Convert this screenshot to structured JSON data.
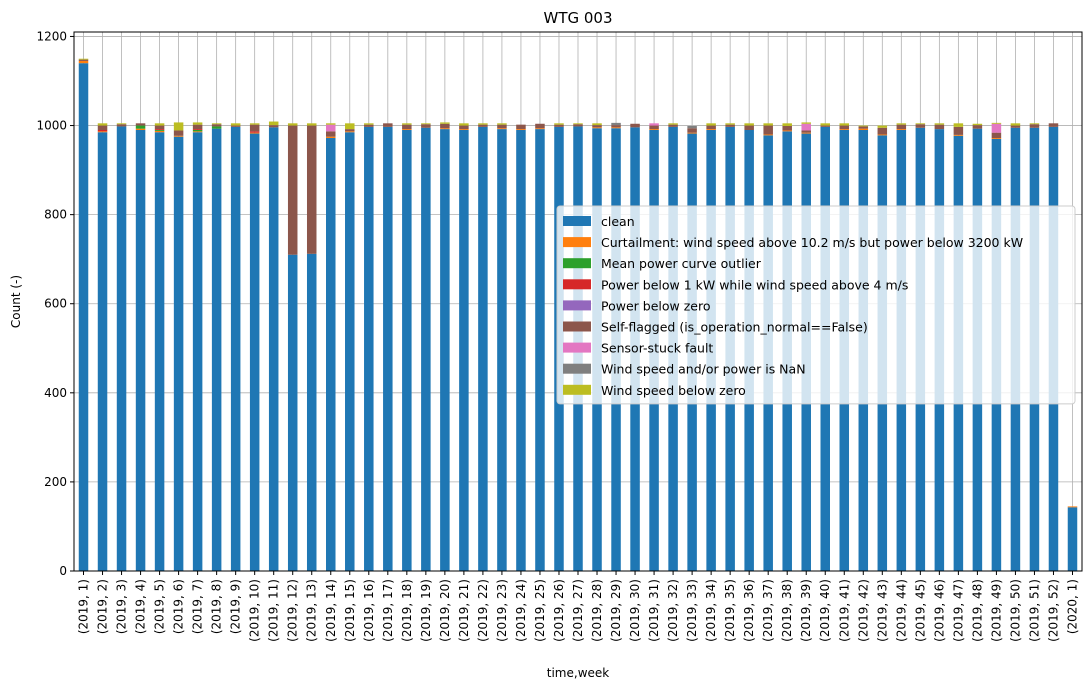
{
  "chart_data": {
    "type": "bar",
    "stacked": true,
    "title": "WTG 003",
    "xlabel": "time,week",
    "ylabel": "Count (-)",
    "ylim": [
      0,
      1210
    ],
    "yticks": [
      0,
      200,
      400,
      600,
      800,
      1000,
      1200
    ],
    "grid": true,
    "legend_position": "center-right",
    "categories": [
      "(2019, 1)",
      "(2019, 2)",
      "(2019, 3)",
      "(2019, 4)",
      "(2019, 5)",
      "(2019, 6)",
      "(2019, 7)",
      "(2019, 8)",
      "(2019, 9)",
      "(2019, 10)",
      "(2019, 11)",
      "(2019, 12)",
      "(2019, 13)",
      "(2019, 14)",
      "(2019, 15)",
      "(2019, 16)",
      "(2019, 17)",
      "(2019, 18)",
      "(2019, 19)",
      "(2019, 20)",
      "(2019, 21)",
      "(2019, 22)",
      "(2019, 23)",
      "(2019, 24)",
      "(2019, 25)",
      "(2019, 26)",
      "(2019, 27)",
      "(2019, 28)",
      "(2019, 29)",
      "(2019, 30)",
      "(2019, 31)",
      "(2019, 32)",
      "(2019, 33)",
      "(2019, 34)",
      "(2019, 35)",
      "(2019, 36)",
      "(2019, 37)",
      "(2019, 38)",
      "(2019, 39)",
      "(2019, 40)",
      "(2019, 41)",
      "(2019, 42)",
      "(2019, 43)",
      "(2019, 44)",
      "(2019, 45)",
      "(2019, 46)",
      "(2019, 47)",
      "(2019, 48)",
      "(2019, 49)",
      "(2019, 50)",
      "(2019, 51)",
      "(2019, 52)",
      "(2020, 1)"
    ],
    "series": [
      {
        "name": "clean",
        "color": "#1f77b4",
        "values": [
          1140,
          985,
          998,
          990,
          985,
          975,
          985,
          993,
          997,
          982,
          996,
          710,
          712,
          972,
          985,
          997,
          997,
          990,
          995,
          992,
          990,
          997,
          992,
          990,
          992,
          997,
          998,
          994,
          994,
          996,
          990,
          997,
          982,
          990,
          997,
          990,
          978,
          987,
          982,
          997,
          990,
          990,
          978,
          990,
          995,
          992,
          977,
          993,
          970,
          995,
          995,
          997,
          143
        ]
      },
      {
        "name": "Curtailment: wind speed above 10.2 m/s but power below 3200 kW",
        "color": "#ff7f0e",
        "values": [
          5,
          2,
          0,
          3,
          3,
          2,
          2,
          0,
          0,
          2,
          0,
          0,
          0,
          3,
          2,
          0,
          0,
          2,
          0,
          2,
          2,
          0,
          2,
          2,
          2,
          0,
          0,
          2,
          2,
          0,
          2,
          0,
          2,
          2,
          0,
          0,
          2,
          2,
          2,
          0,
          2,
          3,
          2,
          2,
          0,
          0,
          2,
          0,
          2,
          0,
          0,
          0,
          2
        ]
      },
      {
        "name": "Mean power curve outlier",
        "color": "#2ca02c",
        "values": [
          0,
          0,
          0,
          7,
          2,
          0,
          3,
          5,
          0,
          0,
          0,
          0,
          0,
          0,
          0,
          0,
          0,
          0,
          0,
          0,
          0,
          0,
          0,
          0,
          0,
          0,
          0,
          0,
          0,
          0,
          0,
          0,
          0,
          0,
          0,
          0,
          0,
          0,
          0,
          0,
          0,
          0,
          0,
          0,
          0,
          0,
          0,
          0,
          0,
          0,
          0,
          0,
          0
        ]
      },
      {
        "name": "Power below 1 kW while wind speed above 4 m/s",
        "color": "#d62728",
        "values": [
          0,
          3,
          0,
          0,
          2,
          0,
          2,
          0,
          0,
          3,
          0,
          0,
          0,
          0,
          0,
          0,
          0,
          0,
          0,
          0,
          0,
          0,
          0,
          0,
          0,
          0,
          0,
          0,
          0,
          0,
          0,
          0,
          0,
          0,
          0,
          0,
          0,
          0,
          0,
          0,
          0,
          0,
          0,
          0,
          0,
          0,
          0,
          0,
          0,
          0,
          0,
          0,
          0
        ]
      },
      {
        "name": "Power below zero",
        "color": "#9467bd",
        "values": [
          0,
          0,
          0,
          0,
          0,
          0,
          0,
          0,
          0,
          0,
          0,
          0,
          0,
          0,
          0,
          0,
          0,
          0,
          0,
          0,
          0,
          0,
          0,
          0,
          0,
          0,
          0,
          0,
          0,
          0,
          0,
          0,
          0,
          0,
          0,
          0,
          0,
          0,
          0,
          0,
          0,
          0,
          0,
          0,
          0,
          0,
          0,
          0,
          0,
          0,
          0,
          0,
          0
        ]
      },
      {
        "name": "Self-flagged (is_operation_normal==False)",
        "color": "#8c564b",
        "values": [
          3,
          10,
          5,
          5,
          8,
          12,
          10,
          5,
          3,
          15,
          5,
          290,
          288,
          12,
          5,
          5,
          8,
          10,
          8,
          10,
          8,
          5,
          8,
          10,
          10,
          5,
          5,
          5,
          5,
          8,
          8,
          5,
          10,
          8,
          5,
          10,
          20,
          10,
          5,
          3,
          8,
          5,
          15,
          10,
          8,
          10,
          18,
          8,
          12,
          5,
          8,
          8,
          0
        ]
      },
      {
        "name": "Sensor-stuck fault",
        "color": "#e377c2",
        "values": [
          0,
          0,
          0,
          0,
          0,
          0,
          0,
          0,
          0,
          0,
          0,
          0,
          0,
          15,
          0,
          0,
          0,
          0,
          0,
          0,
          0,
          0,
          0,
          0,
          0,
          0,
          0,
          0,
          0,
          0,
          5,
          0,
          0,
          0,
          0,
          0,
          0,
          0,
          15,
          0,
          0,
          0,
          0,
          0,
          0,
          0,
          0,
          0,
          20,
          0,
          0,
          0,
          0
        ]
      },
      {
        "name": "Wind speed and/or power is NaN",
        "color": "#7f7f7f",
        "values": [
          0,
          0,
          0,
          0,
          0,
          0,
          0,
          0,
          0,
          0,
          0,
          0,
          0,
          0,
          0,
          0,
          0,
          0,
          0,
          0,
          0,
          0,
          0,
          0,
          0,
          0,
          0,
          0,
          5,
          0,
          0,
          0,
          5,
          0,
          0,
          0,
          0,
          0,
          0,
          0,
          0,
          0,
          0,
          0,
          0,
          0,
          0,
          0,
          0,
          0,
          0,
          0,
          0
        ]
      },
      {
        "name": "Wind speed below zero",
        "color": "#bcbd22",
        "values": [
          2,
          5,
          2,
          0,
          5,
          18,
          5,
          2,
          5,
          3,
          8,
          5,
          5,
          3,
          13,
          3,
          0,
          3,
          2,
          3,
          5,
          3,
          3,
          0,
          0,
          3,
          2,
          4,
          0,
          0,
          0,
          3,
          0,
          5,
          3,
          5,
          5,
          6,
          3,
          5,
          5,
          2,
          5,
          3,
          2,
          3,
          8,
          3,
          2,
          5,
          2,
          0,
          0
        ]
      }
    ]
  }
}
